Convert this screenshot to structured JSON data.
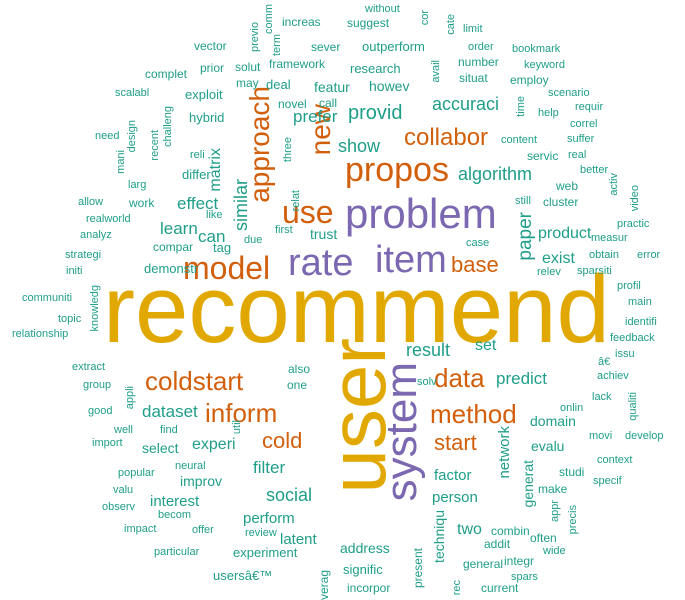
{
  "colors": {
    "teal": "#1f9e89",
    "orange": "#d25f0b",
    "gold": "#e0a800",
    "purple": "#7b68b0"
  },
  "words": [
    {
      "text": "recommend",
      "color": "gold"
    },
    {
      "text": "user",
      "color": "gold"
    },
    {
      "text": "system",
      "color": "purple"
    },
    {
      "text": "problem",
      "color": "purple"
    },
    {
      "text": "item",
      "color": "purple"
    },
    {
      "text": "rate",
      "color": "purple"
    },
    {
      "text": "propos",
      "color": "orange"
    },
    {
      "text": "model",
      "color": "orange"
    },
    {
      "text": "use",
      "color": "orange"
    },
    {
      "text": "approach",
      "color": "orange"
    },
    {
      "text": "new",
      "color": "orange"
    },
    {
      "text": "collabor",
      "color": "orange"
    },
    {
      "text": "coldstart",
      "color": "orange"
    },
    {
      "text": "inform",
      "color": "orange"
    },
    {
      "text": "method",
      "color": "orange"
    },
    {
      "text": "data",
      "color": "orange"
    },
    {
      "text": "base",
      "color": "orange"
    },
    {
      "text": "cold",
      "color": "orange"
    },
    {
      "text": "start",
      "color": "orange"
    },
    {
      "text": "algorithm",
      "color": "teal"
    },
    {
      "text": "accuraci",
      "color": "teal"
    },
    {
      "text": "provid",
      "color": "teal"
    },
    {
      "text": "show",
      "color": "teal"
    },
    {
      "text": "prefer",
      "color": "teal"
    },
    {
      "text": "featur",
      "color": "teal"
    },
    {
      "text": "howev",
      "color": "teal"
    },
    {
      "text": "similar",
      "color": "teal"
    },
    {
      "text": "matrix",
      "color": "teal"
    },
    {
      "text": "effect",
      "color": "teal"
    },
    {
      "text": "learn",
      "color": "teal"
    },
    {
      "text": "can",
      "color": "teal"
    },
    {
      "text": "paper",
      "color": "teal"
    },
    {
      "text": "exist",
      "color": "teal"
    },
    {
      "text": "product",
      "color": "teal"
    },
    {
      "text": "trust",
      "color": "teal"
    },
    {
      "text": "result",
      "color": "teal"
    },
    {
      "text": "predict",
      "color": "teal"
    },
    {
      "text": "set",
      "color": "teal"
    },
    {
      "text": "dataset",
      "color": "teal"
    },
    {
      "text": "experi",
      "color": "teal"
    },
    {
      "text": "select",
      "color": "teal"
    },
    {
      "text": "filter",
      "color": "teal"
    },
    {
      "text": "improv",
      "color": "teal"
    },
    {
      "text": "social",
      "color": "teal"
    },
    {
      "text": "interest",
      "color": "teal"
    },
    {
      "text": "perform",
      "color": "teal"
    },
    {
      "text": "latent",
      "color": "teal"
    },
    {
      "text": "address",
      "color": "teal"
    },
    {
      "text": "factor",
      "color": "teal"
    },
    {
      "text": "person",
      "color": "teal"
    },
    {
      "text": "network",
      "color": "teal"
    },
    {
      "text": "domain",
      "color": "teal"
    },
    {
      "text": "evalu",
      "color": "teal"
    },
    {
      "text": "two",
      "color": "teal"
    },
    {
      "text": "techniqu",
      "color": "teal"
    },
    {
      "text": "generat",
      "color": "teal"
    },
    {
      "text": "experiment",
      "color": "teal"
    },
    {
      "text": "signific",
      "color": "teal"
    },
    {
      "text": "usersâ€™",
      "color": "teal"
    },
    {
      "text": "demonstr",
      "color": "teal"
    },
    {
      "text": "tag",
      "color": "teal"
    },
    {
      "text": "compar",
      "color": "teal"
    },
    {
      "text": "work",
      "color": "teal"
    },
    {
      "text": "realworld",
      "color": "teal"
    },
    {
      "text": "differ",
      "color": "teal"
    },
    {
      "text": "hybrid",
      "color": "teal"
    },
    {
      "text": "exploit",
      "color": "teal"
    },
    {
      "text": "framework",
      "color": "teal"
    },
    {
      "text": "research",
      "color": "teal"
    },
    {
      "text": "outperform",
      "color": "teal"
    },
    {
      "text": "sever",
      "color": "teal"
    },
    {
      "text": "increas",
      "color": "teal"
    },
    {
      "text": "suggest",
      "color": "teal"
    },
    {
      "text": "vector",
      "color": "teal"
    },
    {
      "text": "prior",
      "color": "teal"
    },
    {
      "text": "solut",
      "color": "teal"
    },
    {
      "text": "complet",
      "color": "teal"
    },
    {
      "text": "may",
      "color": "teal"
    },
    {
      "text": "deal",
      "color": "teal"
    },
    {
      "text": "scalabl",
      "color": "teal"
    },
    {
      "text": "novel",
      "color": "teal"
    },
    {
      "text": "call",
      "color": "teal"
    },
    {
      "text": "number",
      "color": "teal"
    },
    {
      "text": "situat",
      "color": "teal"
    },
    {
      "text": "order",
      "color": "teal"
    },
    {
      "text": "bookmark",
      "color": "teal"
    },
    {
      "text": "keyword",
      "color": "teal"
    },
    {
      "text": "employ",
      "color": "teal"
    },
    {
      "text": "limit",
      "color": "teal"
    },
    {
      "text": "scenario",
      "color": "teal"
    },
    {
      "text": "help",
      "color": "teal"
    },
    {
      "text": "requir",
      "color": "teal"
    },
    {
      "text": "correl",
      "color": "teal"
    },
    {
      "text": "suffer",
      "color": "teal"
    },
    {
      "text": "content",
      "color": "teal"
    },
    {
      "text": "servic",
      "color": "teal"
    },
    {
      "text": "real",
      "color": "teal"
    },
    {
      "text": "better",
      "color": "teal"
    },
    {
      "text": "web",
      "color": "teal"
    },
    {
      "text": "cluster",
      "color": "teal"
    },
    {
      "text": "still",
      "color": "teal"
    },
    {
      "text": "video",
      "color": "teal"
    },
    {
      "text": "practic",
      "color": "teal"
    },
    {
      "text": "measur",
      "color": "teal"
    },
    {
      "text": "obtain",
      "color": "teal"
    },
    {
      "text": "error",
      "color": "teal"
    },
    {
      "text": "sparsiti",
      "color": "teal"
    },
    {
      "text": "relev",
      "color": "teal"
    },
    {
      "text": "case",
      "color": "teal"
    },
    {
      "text": "profil",
      "color": "teal"
    },
    {
      "text": "main",
      "color": "teal"
    },
    {
      "text": "identifi",
      "color": "teal"
    },
    {
      "text": "feedback",
      "color": "teal"
    },
    {
      "text": "issu",
      "color": "teal"
    },
    {
      "text": "â€",
      "color": "teal"
    },
    {
      "text": "achiev",
      "color": "teal"
    },
    {
      "text": "lack",
      "color": "teal"
    },
    {
      "text": "onlin",
      "color": "teal"
    },
    {
      "text": "qualiti",
      "color": "teal"
    },
    {
      "text": "movi",
      "color": "teal"
    },
    {
      "text": "develop",
      "color": "teal"
    },
    {
      "text": "context",
      "color": "teal"
    },
    {
      "text": "studi",
      "color": "teal"
    },
    {
      "text": "specif",
      "color": "teal"
    },
    {
      "text": "make",
      "color": "teal"
    },
    {
      "text": "combin",
      "color": "teal"
    },
    {
      "text": "often",
      "color": "teal"
    },
    {
      "text": "addit",
      "color": "teal"
    },
    {
      "text": "integr",
      "color": "teal"
    },
    {
      "text": "wide",
      "color": "teal"
    },
    {
      "text": "general",
      "color": "teal"
    },
    {
      "text": "spars",
      "color": "teal"
    },
    {
      "text": "current",
      "color": "teal"
    },
    {
      "text": "present",
      "color": "teal"
    },
    {
      "text": "incorpor",
      "color": "teal"
    },
    {
      "text": "leverag",
      "color": "teal"
    },
    {
      "text": "review",
      "color": "teal"
    },
    {
      "text": "particular",
      "color": "teal"
    },
    {
      "text": "offer",
      "color": "teal"
    },
    {
      "text": "impact",
      "color": "teal"
    },
    {
      "text": "becom",
      "color": "teal"
    },
    {
      "text": "observ",
      "color": "teal"
    },
    {
      "text": "valu",
      "color": "teal"
    },
    {
      "text": "popular",
      "color": "teal"
    },
    {
      "text": "neural",
      "color": "teal"
    },
    {
      "text": "import",
      "color": "teal"
    },
    {
      "text": "well",
      "color": "teal"
    },
    {
      "text": "find",
      "color": "teal"
    },
    {
      "text": "good",
      "color": "teal"
    },
    {
      "text": "group",
      "color": "teal"
    },
    {
      "text": "extract",
      "color": "teal"
    },
    {
      "text": "appli",
      "color": "teal"
    },
    {
      "text": "also",
      "color": "teal"
    },
    {
      "text": "one",
      "color": "teal"
    },
    {
      "text": "solv",
      "color": "teal"
    },
    {
      "text": "communiti",
      "color": "teal"
    },
    {
      "text": "topic",
      "color": "teal"
    },
    {
      "text": "relationship",
      "color": "teal"
    },
    {
      "text": "knowledg",
      "color": "teal"
    },
    {
      "text": "strategi",
      "color": "teal"
    },
    {
      "text": "initi",
      "color": "teal"
    },
    {
      "text": "allow",
      "color": "teal"
    },
    {
      "text": "analyz",
      "color": "teal"
    },
    {
      "text": "larg",
      "color": "teal"
    },
    {
      "text": "mani",
      "color": "teal"
    },
    {
      "text": "need",
      "color": "teal"
    },
    {
      "text": "design",
      "color": "teal"
    },
    {
      "text": "recent",
      "color": "teal"
    },
    {
      "text": "challeng",
      "color": "teal"
    },
    {
      "text": "reli",
      "color": "teal"
    },
    {
      "text": "like",
      "color": "teal"
    },
    {
      "text": "due",
      "color": "teal"
    },
    {
      "text": "first",
      "color": "teal"
    },
    {
      "text": "relat",
      "color": "teal"
    },
    {
      "text": "three",
      "color": "teal"
    },
    {
      "text": "activ",
      "color": "teal"
    },
    {
      "text": "appr",
      "color": "teal"
    },
    {
      "text": "precis",
      "color": "teal"
    },
    {
      "text": "time",
      "color": "teal"
    },
    {
      "text": "avail",
      "color": "teal"
    },
    {
      "text": "previo",
      "color": "teal"
    },
    {
      "text": "term",
      "color": "teal"
    },
    {
      "text": "cate",
      "color": "teal"
    },
    {
      "text": "cor",
      "color": "teal"
    },
    {
      "text": "comm",
      "color": "teal"
    },
    {
      "text": "without",
      "color": "teal"
    },
    {
      "text": "util",
      "color": "teal"
    },
    {
      "text": "rec",
      "color": "teal"
    }
  ]
}
